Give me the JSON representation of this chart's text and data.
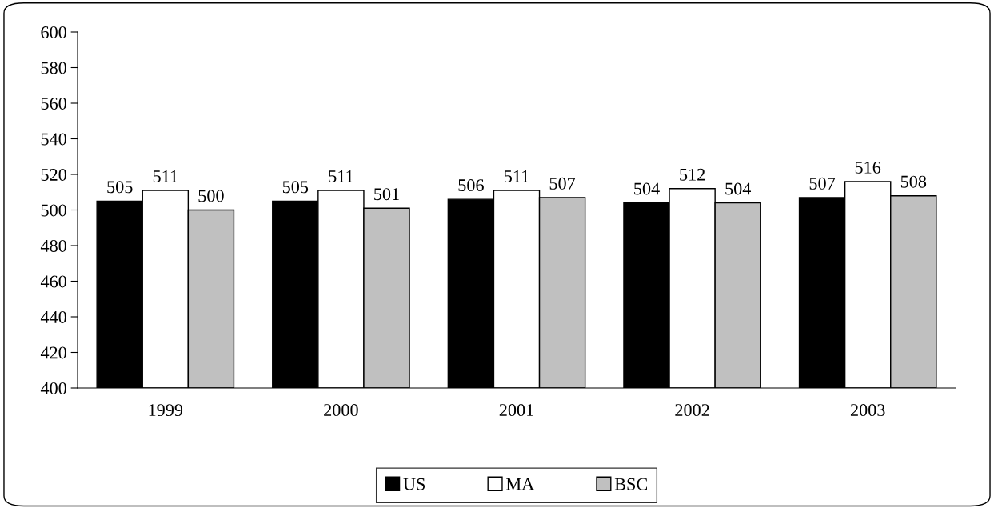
{
  "chart_data": {
    "type": "bar",
    "categories": [
      "1999",
      "2000",
      "2001",
      "2002",
      "2003"
    ],
    "series": [
      {
        "name": "US",
        "color": "#000000",
        "values": [
          505,
          505,
          506,
          504,
          507
        ]
      },
      {
        "name": "MA",
        "color": "#ffffff",
        "values": [
          511,
          511,
          511,
          512,
          516
        ]
      },
      {
        "name": "BSC",
        "color": "#c0c0c0",
        "values": [
          500,
          501,
          507,
          504,
          508
        ]
      }
    ],
    "ylim": [
      400,
      600
    ],
    "yticks": [
      400,
      420,
      440,
      460,
      480,
      500,
      520,
      540,
      560,
      580,
      600
    ],
    "data_labels": true,
    "grid": false,
    "legend": "bottom"
  }
}
